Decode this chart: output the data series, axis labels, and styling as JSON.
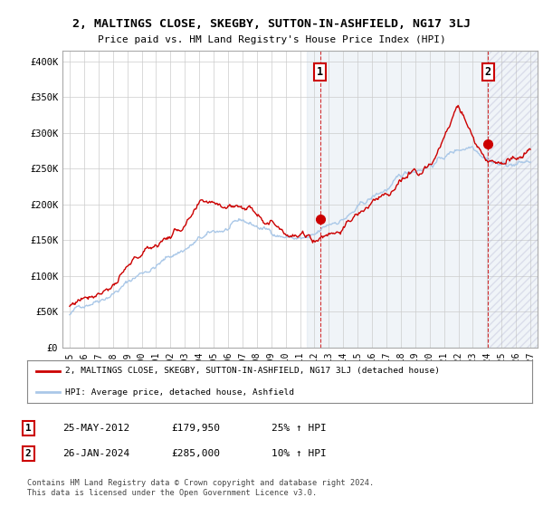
{
  "title": "2, MALTINGS CLOSE, SKEGBY, SUTTON-IN-ASHFIELD, NG17 3LJ",
  "subtitle": "Price paid vs. HM Land Registry's House Price Index (HPI)",
  "ylabel_ticks": [
    "£0",
    "£50K",
    "£100K",
    "£150K",
    "£200K",
    "£250K",
    "£300K",
    "£350K",
    "£400K"
  ],
  "ytick_values": [
    0,
    50000,
    100000,
    150000,
    200000,
    250000,
    300000,
    350000,
    400000
  ],
  "ylim": [
    0,
    415000
  ],
  "xlim_start": 1994.5,
  "xlim_end": 2027.5,
  "hpi_color": "#aac8e8",
  "price_color": "#cc0000",
  "grid_color": "#cccccc",
  "background_color": "#ffffff",
  "shade_color": "#ddeeff",
  "marker1_year": 2012.39,
  "marker1_price": 179950,
  "marker2_year": 2024.07,
  "marker2_price": 285000,
  "legend_label_price": "2, MALTINGS CLOSE, SKEGBY, SUTTON-IN-ASHFIELD, NG17 3LJ (detached house)",
  "legend_label_hpi": "HPI: Average price, detached house, Ashfield",
  "footnote": "Contains HM Land Registry data © Crown copyright and database right 2024.\nThis data is licensed under the Open Government Licence v3.0.",
  "table_rows": [
    {
      "num": "1",
      "date": "25-MAY-2012",
      "price": "£179,950",
      "hpi": "25% ↑ HPI"
    },
    {
      "num": "2",
      "date": "26-JAN-2024",
      "price": "£285,000",
      "hpi": "10% ↑ HPI"
    }
  ],
  "xticks": [
    1995,
    1996,
    1997,
    1998,
    1999,
    2000,
    2001,
    2002,
    2003,
    2004,
    2005,
    2006,
    2007,
    2008,
    2009,
    2010,
    2011,
    2012,
    2013,
    2014,
    2015,
    2016,
    2017,
    2018,
    2019,
    2020,
    2021,
    2022,
    2023,
    2024,
    2025,
    2026,
    2027
  ]
}
